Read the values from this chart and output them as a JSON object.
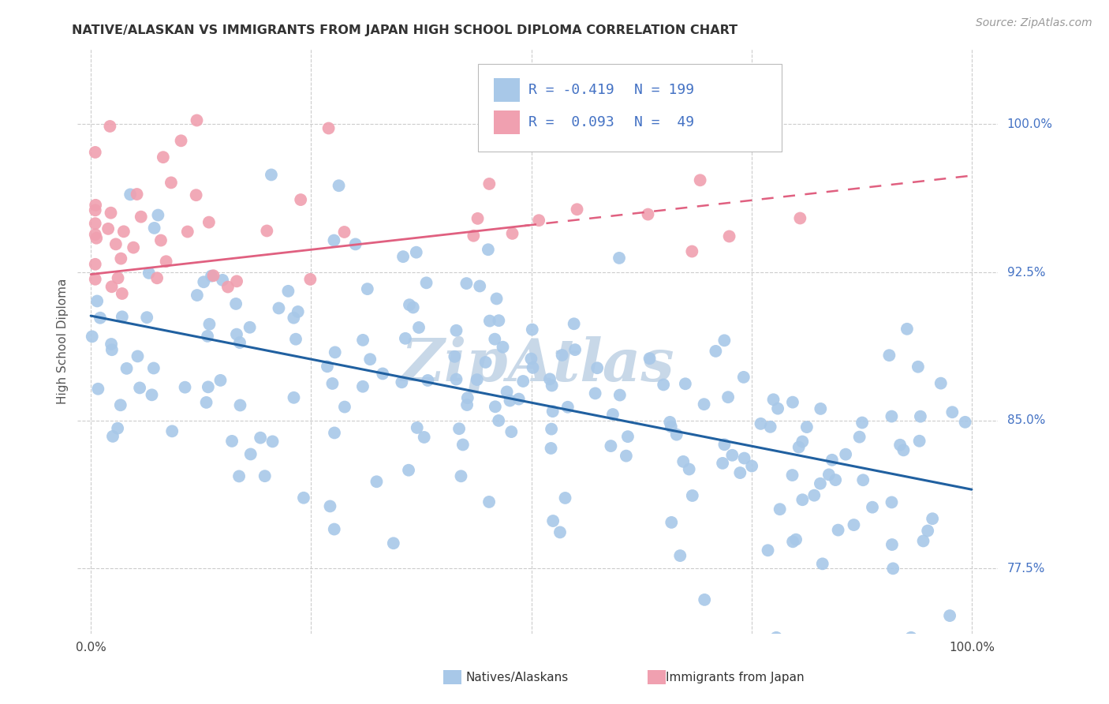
{
  "title": "NATIVE/ALASKAN VS IMMIGRANTS FROM JAPAN HIGH SCHOOL DIPLOMA CORRELATION CHART",
  "source": "Source: ZipAtlas.com",
  "ylabel": "High School Diploma",
  "ytick_labels": [
    "100.0%",
    "92.5%",
    "85.0%",
    "77.5%"
  ],
  "ytick_values": [
    1.0,
    0.925,
    0.85,
    0.775
  ],
  "legend_blue_r": "R = -0.419",
  "legend_blue_n": "N = 199",
  "legend_pink_r": "R =  0.093",
  "legend_pink_n": "N =  49",
  "blue_color": "#A8C8E8",
  "pink_color": "#F0A0B0",
  "blue_line_color": "#2060A0",
  "pink_line_color": "#E06080",
  "watermark": "ZipAtlas",
  "watermark_color": "#C8D8E8",
  "xlim": [
    0.0,
    1.0
  ],
  "ylim": [
    0.74,
    1.04
  ]
}
